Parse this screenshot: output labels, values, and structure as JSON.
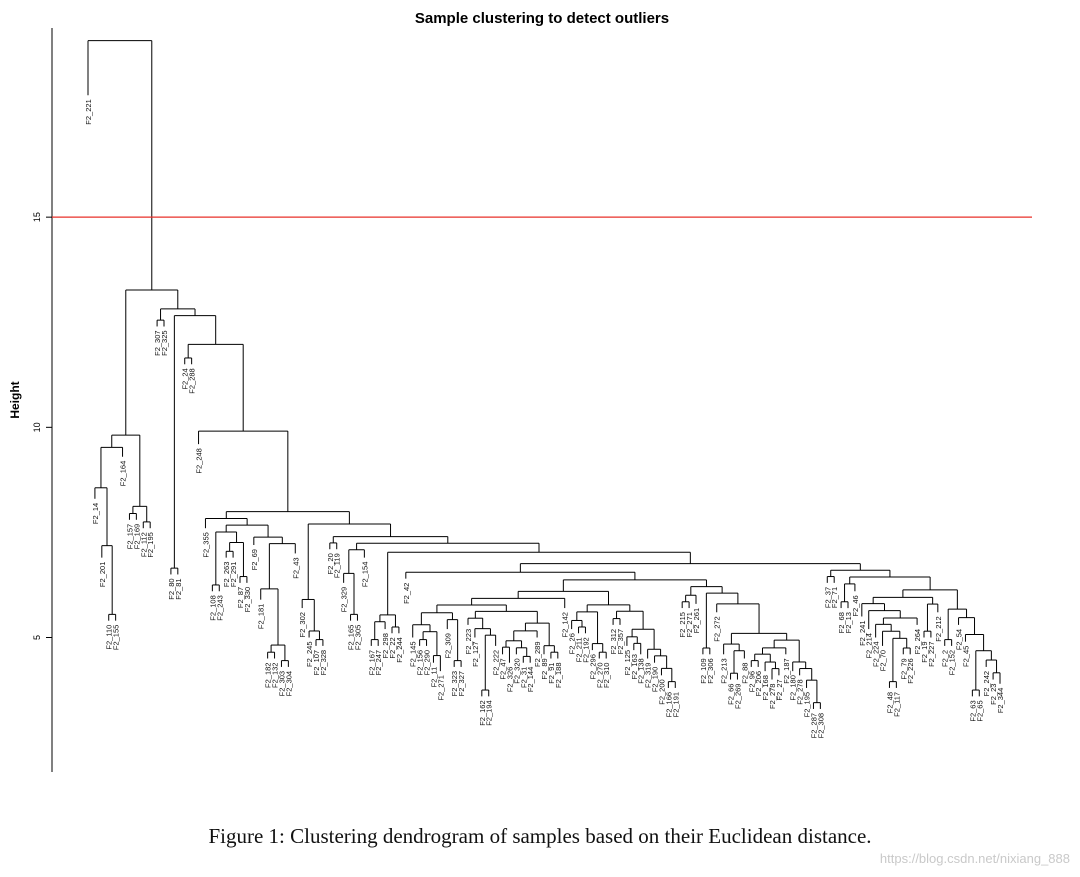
{
  "caption": "Figure 1: Clustering dendrogram of samples based on their Euclidean distance.",
  "watermark": "https://blog.csdn.net/nixiang_888",
  "chart_data": {
    "type": "dendrogram",
    "title": "Sample clustering to detect outliers",
    "ylabel": "Height",
    "xlabel": "",
    "ylim": [
      1.8,
      19.5
    ],
    "yticks": [
      5,
      10,
      15
    ],
    "grid": false,
    "cut_line": {
      "height": 15,
      "color": "#e8302a"
    },
    "leaves": [
      {
        "label": "F2_221",
        "h": 17.9
      },
      {
        "label": "F2_14",
        "h": 8.3
      },
      {
        "label": "F2_201",
        "h": 6.9
      },
      {
        "label": "F2_110",
        "h": 5.4
      },
      {
        "label": "F2_155",
        "h": 5.4
      },
      {
        "label": "F2_164",
        "h": 9.3
      },
      {
        "label": "F2_157",
        "h": 7.8
      },
      {
        "label": "F2_169",
        "h": 7.8
      },
      {
        "label": "F2_112",
        "h": 7.6
      },
      {
        "label": "F2_195",
        "h": 7.6
      },
      {
        "label": "F2_307",
        "h": 12.4
      },
      {
        "label": "F2_325",
        "h": 12.4
      },
      {
        "label": "F2_80",
        "h": 6.5
      },
      {
        "label": "F2_81",
        "h": 6.5
      },
      {
        "label": "F2_24",
        "h": 11.5
      },
      {
        "label": "F2_288",
        "h": 11.5
      },
      {
        "label": "F2_248",
        "h": 9.6
      },
      {
        "label": "F2_355",
        "h": 7.6
      },
      {
        "label": "F2_108",
        "h": 6.1
      },
      {
        "label": "F2_243",
        "h": 6.1
      },
      {
        "label": "F2_263",
        "h": 6.9
      },
      {
        "label": "F2_291",
        "h": 6.9
      },
      {
        "label": "F2_87",
        "h": 6.3
      },
      {
        "label": "F2_330",
        "h": 6.3
      },
      {
        "label": "F2_69",
        "h": 7.2
      },
      {
        "label": "F2_181",
        "h": 5.9
      },
      {
        "label": "F2_182",
        "h": 4.5
      },
      {
        "label": "F2_132",
        "h": 4.5
      },
      {
        "label": "F2_303",
        "h": 4.3
      },
      {
        "label": "F2_304",
        "h": 4.3
      },
      {
        "label": "F2_43",
        "h": 7.0
      },
      {
        "label": "F2_302",
        "h": 5.7
      },
      {
        "label": "F2_245",
        "h": 5.0
      },
      {
        "label": "F2_107",
        "h": 4.8
      },
      {
        "label": "F2_328",
        "h": 4.8
      },
      {
        "label": "F2_20",
        "h": 7.1
      },
      {
        "label": "F2_119",
        "h": 7.1
      },
      {
        "label": "F2_329",
        "h": 6.3
      },
      {
        "label": "F2_165",
        "h": 5.4
      },
      {
        "label": "F2_305",
        "h": 5.4
      },
      {
        "label": "F2_154",
        "h": 6.9
      },
      {
        "label": "F2_167",
        "h": 4.8
      },
      {
        "label": "F2_247",
        "h": 4.8
      },
      {
        "label": "F2_298",
        "h": 5.2
      },
      {
        "label": "F2_22",
        "h": 5.1
      },
      {
        "label": "F2_244",
        "h": 5.1
      },
      {
        "label": "F2_42",
        "h": 6.4
      },
      {
        "label": "F2_145",
        "h": 5.0
      },
      {
        "label": "F2_156",
        "h": 4.8
      },
      {
        "label": "F2_290",
        "h": 4.8
      },
      {
        "label": "F2_11",
        "h": 4.4
      },
      {
        "label": "F2_271",
        "h": 4.2
      },
      {
        "label": "F2_309",
        "h": 5.2
      },
      {
        "label": "F2_323",
        "h": 4.3
      },
      {
        "label": "F2_327",
        "h": 4.3
      },
      {
        "label": "F2_223",
        "h": 5.3
      },
      {
        "label": "F2_127",
        "h": 5.0
      },
      {
        "label": "F2_162",
        "h": 3.6
      },
      {
        "label": "F2_194",
        "h": 3.6
      },
      {
        "label": "F2_222",
        "h": 4.8
      },
      {
        "label": "F2_47",
        "h": 4.6
      },
      {
        "label": "F2_326",
        "h": 4.4
      },
      {
        "label": "F2_320",
        "h": 4.6
      },
      {
        "label": "F2_31",
        "h": 4.4
      },
      {
        "label": "F2_144",
        "h": 4.4
      },
      {
        "label": "F2_289",
        "h": 5.0
      },
      {
        "label": "F2_89",
        "h": 4.6
      },
      {
        "label": "F2_91",
        "h": 4.5
      },
      {
        "label": "F2_188",
        "h": 4.5
      },
      {
        "label": "F2_142",
        "h": 5.7
      },
      {
        "label": "F2_26",
        "h": 5.2
      },
      {
        "label": "F2_211",
        "h": 5.1
      },
      {
        "label": "F2_192",
        "h": 5.1
      },
      {
        "label": "F2_296",
        "h": 4.7
      },
      {
        "label": "F2_270",
        "h": 4.5
      },
      {
        "label": "F2_310",
        "h": 4.5
      },
      {
        "label": "F2_312",
        "h": 5.3
      },
      {
        "label": "F2_357",
        "h": 5.3
      },
      {
        "label": "F2_125",
        "h": 4.8
      },
      {
        "label": "F2_163",
        "h": 4.7
      },
      {
        "label": "F2_138",
        "h": 4.6
      },
      {
        "label": "F2_319",
        "h": 4.5
      },
      {
        "label": "F2_190",
        "h": 4.4
      },
      {
        "label": "F2_200",
        "h": 4.1
      },
      {
        "label": "F2_166",
        "h": 3.8
      },
      {
        "label": "F2_191",
        "h": 3.8
      },
      {
        "label": "F2_215",
        "h": 5.7
      },
      {
        "label": "F2_271",
        "h": 5.7
      },
      {
        "label": "F2_261",
        "h": 5.8
      },
      {
        "label": "F2_109",
        "h": 4.6
      },
      {
        "label": "F2_306",
        "h": 4.6
      },
      {
        "label": "F2_272",
        "h": 5.6
      },
      {
        "label": "F2_213",
        "h": 4.6
      },
      {
        "label": "F2_66",
        "h": 4.0
      },
      {
        "label": "F2_269",
        "h": 4.0
      },
      {
        "label": "F2_88",
        "h": 4.5
      },
      {
        "label": "F2_96",
        "h": 4.3
      },
      {
        "label": "F2_206",
        "h": 4.3
      },
      {
        "label": "F2_168",
        "h": 4.2
      },
      {
        "label": "F2_278",
        "h": 4.0
      },
      {
        "label": "F2_27",
        "h": 4.1
      },
      {
        "label": "F2_187",
        "h": 4.6
      },
      {
        "label": "F2_180",
        "h": 4.2
      },
      {
        "label": "F2_278",
        "h": 4.1
      },
      {
        "label": "F2_195",
        "h": 3.8
      },
      {
        "label": "F2_287",
        "h": 3.3
      },
      {
        "label": "F2_308",
        "h": 3.3
      },
      {
        "label": "F2_37",
        "h": 6.3
      },
      {
        "label": "F2_71",
        "h": 6.3
      },
      {
        "label": "F2_68",
        "h": 5.7
      },
      {
        "label": "F2_13",
        "h": 5.7
      },
      {
        "label": "F2_46",
        "h": 6.1
      },
      {
        "label": "F2_241",
        "h": 5.5
      },
      {
        "label": "F2_214",
        "h": 5.2
      },
      {
        "label": "F2_224",
        "h": 5.0
      },
      {
        "label": "F2_70",
        "h": 4.8
      },
      {
        "label": "F2_48",
        "h": 3.8
      },
      {
        "label": "F2_117",
        "h": 3.8
      },
      {
        "label": "F2_79",
        "h": 4.6
      },
      {
        "label": "F2_226",
        "h": 4.6
      },
      {
        "label": "F2_264",
        "h": 5.3
      },
      {
        "label": "F2_19",
        "h": 5.0
      },
      {
        "label": "F2_227",
        "h": 5.0
      },
      {
        "label": "F2_212",
        "h": 5.6
      },
      {
        "label": "F2_2",
        "h": 4.8
      },
      {
        "label": "F2_152",
        "h": 4.8
      },
      {
        "label": "F2_54",
        "h": 5.3
      },
      {
        "label": "F2_45",
        "h": 4.9
      },
      {
        "label": "F2_63",
        "h": 3.6
      },
      {
        "label": "F2_65",
        "h": 3.6
      },
      {
        "label": "F2_242",
        "h": 4.3
      },
      {
        "label": "F2_23",
        "h": 4.0
      },
      {
        "label": "F2_344",
        "h": 3.9
      }
    ],
    "merges": [
      [
        2,
        3,
        6.9
      ],
      [
        1,
        [
          2,
          3
        ],
        8.3
      ],
      [
        0,
        [
          1,
          [
            2,
            3
          ]
        ],
        10.2
      ],
      [
        5,
        6,
        9.3
      ],
      [
        7,
        8,
        8.7
      ],
      [
        4,
        [
          5,
          6
        ],
        10.9
      ],
      [
        [
          4,
          [
            5,
            6
          ]
        ],
        [
          7,
          8
        ],
        11.0
      ],
      [
        [
          0,
          [
            1,
            [
              2,
              3
            ]
          ]
        ],
        [
          [
            4,
            [
              5,
              6
            ]
          ],
          [
            7,
            8
          ]
        ],
        13.0
      ],
      [
        11,
        12,
        7.9
      ],
      [
        9,
        10,
        12.5
      ],
      [
        16,
        17,
        7.6
      ],
      [
        18,
        19,
        8.5
      ],
      [
        22,
        23,
        7.6
      ],
      [
        20,
        21,
        9.0
      ],
      [
        24,
        25,
        6.2
      ],
      [
        26,
        27,
        6.0
      ],
      [
        [
          24,
          25
        ],
        [
          26,
          27
        ],
        7.2
      ],
      [
        [
          20,
          21
        ],
        [
          [
            24,
            25
          ],
          [
            26,
            27
          ]
        ],
        8.6
      ],
      [
        [
          18,
          19
        ],
        [
          22,
          23
        ],
        8.5
      ],
      [
        15,
        [
          16,
          17
        ],
        9.2
      ],
      [
        31,
        32,
        6.0
      ],
      [
        33,
        34,
        6.1
      ],
      [
        [
          31,
          32
        ],
        [
          33,
          34
        ],
        7.1
      ],
      [
        30,
        [
          [
            31,
            32
          ],
          [
            33,
            34
          ]
        ],
        8.8
      ],
      [
        29,
        [
          30,
          [
            [
              31,
              32
            ],
            [
              33,
              34
            ]
          ]
        ],
        9.3
      ],
      [
        35,
        36,
        7.1
      ],
      [
        37,
        38,
        5.4
      ],
      [
        39,
        [
          37,
          38
        ],
        7.2
      ],
      [
        [
          35,
          36
        ],
        [
          39,
          [
            37,
            38
          ]
        ],
        8.5
      ],
      [
        44,
        45,
        5.7
      ],
      [
        43,
        [
          44,
          45
        ],
        6.4
      ],
      [
        41,
        42,
        6.0
      ],
      [
        40,
        [
          41,
          42
        ],
        7.5
      ],
      [
        47,
        48,
        6.2
      ],
      [
        49,
        50,
        5.5
      ],
      [
        51,
        52,
        5.5
      ],
      [
        [
          49,
          50
        ],
        [
          51,
          52
        ],
        6.6
      ],
      [
        [
          47,
          48
        ],
        [
          [
            49,
            50
          ],
          [
            51,
            52
          ]
        ],
        7.4
      ],
      [
        54,
        55,
        5.9
      ],
      [
        56,
        57,
        5.9
      ],
      [
        53,
        [
          54,
          55
        ],
        6.3
      ],
      [
        [
          53,
          [
            54,
            55
          ]
        ],
        [
          56,
          57
        ],
        6.6
      ]
    ]
  }
}
